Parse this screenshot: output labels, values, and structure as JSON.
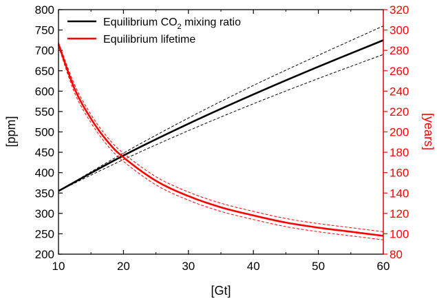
{
  "chart_data": {
    "type": "line",
    "xlabel": "[Gt]",
    "ylabel_left": "[ppm]",
    "ylabel_right": "[years]",
    "xlim": [
      10,
      60
    ],
    "ylim_left": [
      200,
      800
    ],
    "ylim_right": [
      80,
      320
    ],
    "x_ticks": [
      10,
      20,
      30,
      40,
      50,
      60
    ],
    "y_left_ticks": [
      200,
      250,
      300,
      350,
      400,
      450,
      500,
      550,
      600,
      650,
      700,
      750,
      800
    ],
    "y_right_ticks": [
      80,
      100,
      120,
      140,
      160,
      180,
      200,
      220,
      240,
      260,
      280,
      300,
      320
    ],
    "grid": false,
    "legend_position": "top-left",
    "colors": {
      "co2": "#000000",
      "lifetime": "#ff0000"
    },
    "series": [
      {
        "name": "Equilibrium CO2 mixing ratio",
        "legend_main": "Equilibrium CO",
        "legend_sub": "2",
        "legend_tail": " mixing ratio",
        "axis": "left",
        "color": "#000000",
        "x": [
          10,
          20,
          30,
          40,
          50,
          60
        ],
        "y": [
          355,
          442,
          520,
          592,
          660,
          725
        ],
        "upper": [
          355,
          448,
          534,
          614,
          688,
          760
        ],
        "lower": [
          355,
          432,
          503,
          569,
          631,
          690
        ]
      },
      {
        "name": "Equilibrium lifetime",
        "legend_main": "Equilibrium lifetime",
        "axis": "right",
        "color": "#ff0000",
        "x": [
          10,
          12.5,
          15,
          17.5,
          20,
          25,
          30,
          35,
          40,
          45,
          50,
          55,
          60
        ],
        "y": [
          286,
          242,
          213,
          191,
          175,
          152,
          137,
          126,
          118,
          111,
          106,
          102,
          98
        ],
        "upper": [
          288,
          246,
          217,
          195,
          179,
          156,
          141,
          130,
          122,
          115,
          110,
          106,
          102
        ],
        "lower": [
          284,
          238,
          209,
          187,
          171,
          148,
          133,
          122,
          114,
          107,
          102,
          98,
          94
        ]
      }
    ]
  }
}
